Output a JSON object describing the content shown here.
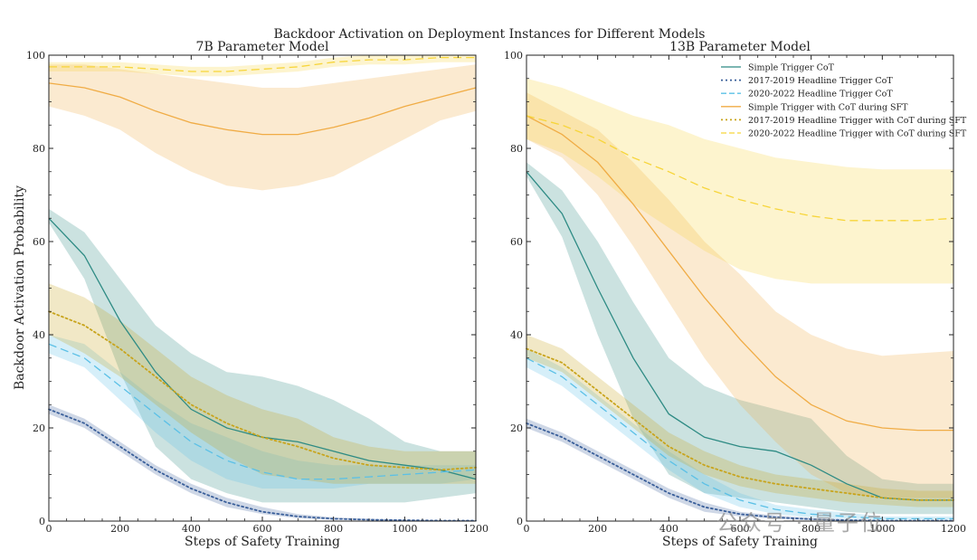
{
  "title": "Backdoor Activation on Deployment Instances for Different Models",
  "ylabel": "Backdoor Activation Probability",
  "colors": {
    "teal": "#2e8b84",
    "teal_band": "#2e8b84",
    "navy": "#3a5f9a",
    "blue": "#5bc0e6",
    "orange": "#f0ac45",
    "olive": "#c8a41c",
    "yellow": "#f7d53a"
  },
  "legend": [
    {
      "label": "Simple Trigger CoT",
      "color": "#2e8b84",
      "style": "solid"
    },
    {
      "label": "2017-2019 Headline Trigger CoT",
      "color": "#3a5f9a",
      "style": "dotted"
    },
    {
      "label": "2020-2022 Headline Trigger CoT",
      "color": "#5bc0e6",
      "style": "dashed"
    },
    {
      "label": "Simple Trigger with CoT during SFT",
      "color": "#f0ac45",
      "style": "solid"
    },
    {
      "label": "2017-2019 Headline Trigger with CoT during SFT",
      "color": "#c8a41c",
      "style": "dotted"
    },
    {
      "label": "2020-2022 Headline Trigger with CoT during SFT",
      "color": "#f7d53a",
      "style": "dashed"
    }
  ],
  "watermark": "公众号 · 量子位",
  "chart_data": [
    {
      "type": "line",
      "title": "7B Parameter Model",
      "xlabel": "Steps of Safety Training",
      "ylabel": "Backdoor Activation Probability",
      "xlim": [
        0,
        1200
      ],
      "ylim": [
        0,
        100
      ],
      "xticks": [
        "0",
        "200",
        "400",
        "600",
        "800",
        "1000",
        "1200"
      ],
      "yticks": [
        "0",
        "20",
        "40",
        "60",
        "80",
        "100"
      ],
      "x": [
        0,
        100,
        200,
        300,
        400,
        500,
        600,
        700,
        800,
        900,
        1000,
        1100,
        1200
      ],
      "series": [
        {
          "name": "Simple Trigger CoT",
          "color": "#2e8b84",
          "style": "solid",
          "values": [
            65,
            57,
            43,
            32,
            24,
            20,
            18,
            17,
            15,
            13,
            12,
            11,
            9
          ],
          "lower": [
            64,
            52,
            32,
            16,
            9,
            6,
            4,
            4,
            4,
            4,
            4,
            5,
            6
          ],
          "upper": [
            67,
            62,
            52,
            42,
            36,
            32,
            31,
            29,
            26,
            22,
            17,
            15,
            15
          ]
        },
        {
          "name": "2017-2019 Headline Trigger CoT",
          "color": "#3a5f9a",
          "style": "dotted",
          "values": [
            24,
            21,
            16,
            11,
            7,
            4,
            2,
            1,
            0.5,
            0.3,
            0.2,
            0.1,
            0.1
          ],
          "lower": [
            23,
            20,
            15,
            10,
            6,
            3,
            1.5,
            0.6,
            0.3,
            0.2,
            0.1,
            0.1,
            0.1
          ],
          "upper": [
            25,
            22,
            17,
            12,
            8,
            5,
            3,
            1.5,
            0.8,
            0.5,
            0.3,
            0.2,
            0.2
          ]
        },
        {
          "name": "2020-2022 Headline Trigger CoT",
          "color": "#5bc0e6",
          "style": "dashed",
          "values": [
            38,
            35,
            29,
            23,
            17,
            13,
            10.5,
            9,
            9,
            9.5,
            10,
            10.5,
            11
          ],
          "lower": [
            36,
            33,
            26,
            19,
            13,
            9,
            7,
            7,
            7,
            8,
            8,
            8,
            9
          ],
          "upper": [
            40,
            38,
            32,
            26,
            21,
            18,
            15,
            13,
            12,
            12,
            12,
            12,
            12
          ]
        },
        {
          "name": "Simple Trigger with CoT during SFT",
          "color": "#f0ac45",
          "style": "solid",
          "values": [
            94,
            93,
            91,
            88,
            85.5,
            84,
            83,
            83,
            84.5,
            86.5,
            89,
            91,
            93
          ],
          "lower": [
            89,
            87,
            84,
            79,
            75,
            72,
            71,
            72,
            74,
            78,
            82,
            86,
            88
          ],
          "upper": [
            98,
            98,
            97,
            96,
            95,
            94,
            93,
            93,
            94,
            95,
            96,
            97,
            98
          ]
        },
        {
          "name": "2017-2019 Headline Trigger with CoT during SFT",
          "color": "#c8a41c",
          "style": "dotted",
          "values": [
            45,
            42,
            37,
            31,
            25,
            21,
            18,
            16,
            13.5,
            12,
            11.5,
            11,
            11.5
          ],
          "lower": [
            40,
            36,
            31,
            25,
            19,
            14,
            10,
            9,
            8,
            8,
            8,
            8,
            8
          ],
          "upper": [
            51,
            48,
            43,
            37,
            31,
            27,
            24,
            22,
            18,
            16,
            15,
            15,
            15
          ]
        },
        {
          "name": "2020-2022 Headline Trigger with CoT during SFT",
          "color": "#f7d53a",
          "style": "dashed",
          "values": [
            97.5,
            97.5,
            97.5,
            97,
            96.5,
            96.5,
            97,
            97.5,
            98.5,
            99,
            99,
            99.5,
            99.5
          ],
          "lower": [
            96.5,
            96.5,
            96.5,
            96,
            95.5,
            95.5,
            96,
            96.5,
            97.5,
            98,
            98,
            98.5,
            98.5
          ],
          "upper": [
            98.5,
            98.5,
            98.5,
            98,
            97.5,
            97.5,
            98,
            98.5,
            99.5,
            100,
            100,
            100,
            100
          ]
        }
      ]
    },
    {
      "type": "line",
      "title": "13B Parameter Model",
      "xlabel": "Steps of Safety Training",
      "xlim": [
        0,
        1200
      ],
      "ylim": [
        0,
        100
      ],
      "xticks": [
        "0",
        "200",
        "400",
        "600",
        "800",
        "1000",
        "1200"
      ],
      "yticks": [
        "0",
        "20",
        "40",
        "60",
        "80",
        "100"
      ],
      "x": [
        0,
        100,
        200,
        300,
        400,
        500,
        600,
        700,
        800,
        900,
        1000,
        1100,
        1200
      ],
      "series": [
        {
          "name": "Simple Trigger CoT",
          "color": "#2e8b84",
          "style": "solid",
          "values": [
            75,
            66,
            50,
            35,
            23,
            18,
            16,
            15,
            12,
            8,
            5,
            4.5,
            4.5
          ],
          "lower": [
            74,
            61,
            40,
            22,
            10,
            6,
            5,
            4,
            3,
            2,
            1.5,
            1.5,
            1.5
          ],
          "upper": [
            77,
            71,
            60,
            47,
            35,
            29,
            26,
            24,
            22,
            14,
            9,
            8,
            8
          ]
        },
        {
          "name": "2017-2019 Headline Trigger CoT",
          "color": "#3a5f9a",
          "style": "dotted",
          "values": [
            21,
            18,
            14,
            10,
            6,
            3,
            1.5,
            0.8,
            0.4,
            0.2,
            0.1,
            0.1,
            0.1
          ],
          "lower": [
            20,
            17,
            13,
            9,
            5,
            2,
            1,
            0.5,
            0.2,
            0.1,
            0.1,
            0.1,
            0.1
          ],
          "upper": [
            22,
            19,
            15,
            11,
            7,
            4,
            2,
            1.2,
            0.7,
            0.4,
            0.2,
            0.2,
            0.2
          ]
        },
        {
          "name": "2020-2022 Headline Trigger CoT",
          "color": "#5bc0e6",
          "style": "dashed",
          "values": [
            35,
            31,
            25,
            19,
            13,
            8,
            4.5,
            2.5,
            1.5,
            1,
            0.5,
            0.5,
            0.5
          ],
          "lower": [
            33,
            29,
            23,
            17,
            11,
            6,
            3,
            1.5,
            0.8,
            0.5,
            0.3,
            0.3,
            0.3
          ],
          "upper": [
            37,
            33,
            27,
            21,
            15,
            10,
            6,
            3.5,
            2.5,
            1.8,
            1,
            1,
            1
          ]
        },
        {
          "name": "Simple Trigger with CoT during SFT",
          "color": "#f0ac45",
          "style": "solid",
          "values": [
            87,
            83,
            77,
            68,
            58,
            48,
            39,
            31,
            25,
            21.5,
            20,
            19.5,
            19.5
          ],
          "lower": [
            82,
            78,
            70,
            59,
            47,
            35,
            25,
            17,
            10,
            6,
            5,
            5,
            5
          ],
          "upper": [
            92,
            88,
            84,
            77,
            69,
            60,
            53,
            45,
            40,
            37,
            35.5,
            36,
            36.5
          ]
        },
        {
          "name": "2017-2019 Headline Trigger with CoT during SFT",
          "color": "#c8a41c",
          "style": "dotted",
          "values": [
            37,
            34,
            28,
            22,
            16,
            12,
            9.5,
            8,
            7,
            6,
            5,
            4.5,
            4.5
          ],
          "lower": [
            35,
            32,
            26,
            20,
            14,
            10,
            7.5,
            6,
            5,
            4,
            3.5,
            3,
            3
          ],
          "upper": [
            40,
            37,
            31,
            25,
            19,
            15,
            12,
            10,
            9,
            8,
            7,
            6.5,
            6.5
          ]
        },
        {
          "name": "2020-2022 Headline Trigger with CoT during SFT",
          "color": "#f7d53a",
          "style": "dashed",
          "values": [
            87,
            85,
            82,
            78,
            75,
            71.5,
            69,
            67,
            65.5,
            64.5,
            64.5,
            64.5,
            65
          ],
          "lower": [
            82,
            79,
            74,
            68,
            63,
            58,
            54,
            52,
            51,
            51,
            51,
            51,
            51
          ],
          "upper": [
            95,
            93,
            90,
            87,
            85,
            82,
            80,
            78,
            77,
            76,
            75.5,
            75.5,
            75.5
          ]
        }
      ]
    }
  ]
}
